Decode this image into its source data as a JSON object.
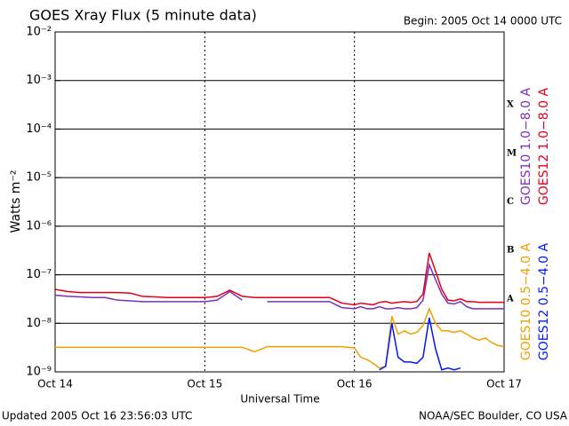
{
  "chart_data": {
    "type": "line",
    "title": "GOES Xray Flux (5 minute data)",
    "subtitle": "Begin:  2005 Oct 14 0000 UTC",
    "x_label": "Universal Time",
    "y_label": "Watts m⁻²",
    "footer_left": "Updated 2005 Oct 16 23:56:03 UTC",
    "footer_right": "NOAA/SEC Boulder, CO USA",
    "ylog": true,
    "grid": true,
    "xlim": [
      0,
      72
    ],
    "xticks": [
      {
        "value": 0,
        "label": "Oct 14"
      },
      {
        "value": 24,
        "label": "Oct 15"
      },
      {
        "value": 48,
        "label": "Oct 16"
      },
      {
        "value": 72,
        "label": "Oct 17"
      }
    ],
    "ylim": [
      1e-09,
      0.01
    ],
    "yticks": [
      {
        "value": 1e-09,
        "label": "10⁻⁹"
      },
      {
        "value": 1e-08,
        "label": "10⁻⁸"
      },
      {
        "value": 1e-07,
        "label": "10⁻⁷"
      },
      {
        "value": 1e-06,
        "label": "10⁻⁶"
      },
      {
        "value": 1e-05,
        "label": "10⁻⁵"
      },
      {
        "value": 0.0001,
        "label": "10⁻⁴"
      },
      {
        "value": 0.001,
        "label": "10⁻³"
      },
      {
        "value": 0.01,
        "label": "10⁻²"
      }
    ],
    "flare_classes": [
      {
        "label": "A",
        "value": 1e-08
      },
      {
        "label": "B",
        "value": 1e-07
      },
      {
        "label": "C",
        "value": 1e-06
      },
      {
        "label": "M",
        "value": 1e-05
      },
      {
        "label": "X",
        "value": 0.0001
      }
    ],
    "x": [
      0,
      2,
      4,
      6,
      8,
      10,
      12,
      14,
      16,
      18,
      20,
      22,
      24,
      26,
      28,
      30,
      32,
      34,
      36,
      38,
      40,
      42,
      44,
      46,
      48,
      49,
      50,
      51,
      52,
      53,
      54,
      55,
      56,
      57,
      58,
      59,
      60,
      61,
      62,
      63,
      64,
      65,
      66,
      67,
      68,
      69,
      70,
      71,
      72
    ],
    "series": [
      {
        "name": "GOES10 1.0−8.0 A",
        "color": "#7b2fbe",
        "values": [
          3.8e-08,
          3.6e-08,
          3.5e-08,
          3.4e-08,
          3.4e-08,
          3e-08,
          2.9e-08,
          2.8e-08,
          2.8e-08,
          2.8e-08,
          2.8e-08,
          2.8e-08,
          2.8e-08,
          3e-08,
          4.5e-08,
          3e-08,
          null,
          2.8e-08,
          2.8e-08,
          2.8e-08,
          2.8e-08,
          2.8e-08,
          2.8e-08,
          2.1e-08,
          2e-08,
          2.2e-08,
          2e-08,
          2e-08,
          2.2e-08,
          2e-08,
          2e-08,
          2.1e-08,
          2e-08,
          2e-08,
          2.1e-08,
          3e-08,
          1.6e-07,
          8e-08,
          4e-08,
          2.6e-08,
          2.5e-08,
          2.8e-08,
          2.2e-08,
          2e-08,
          2e-08,
          2e-08,
          2e-08,
          2e-08,
          2e-08
        ]
      },
      {
        "name": "GOES12 1.0−8.0 A",
        "color": "#e0001a",
        "values": [
          5e-08,
          4.5e-08,
          4.3e-08,
          4.3e-08,
          4.3e-08,
          4.3e-08,
          4.2e-08,
          3.6e-08,
          3.5e-08,
          3.4e-08,
          3.4e-08,
          3.4e-08,
          3.4e-08,
          3.6e-08,
          4.8e-08,
          3.6e-08,
          3.4e-08,
          3.4e-08,
          3.4e-08,
          3.4e-08,
          3.4e-08,
          3.4e-08,
          3.4e-08,
          2.6e-08,
          2.4e-08,
          2.6e-08,
          2.5e-08,
          2.4e-08,
          2.7e-08,
          2.8e-08,
          2.6e-08,
          2.7e-08,
          2.8e-08,
          2.7e-08,
          2.8e-08,
          4e-08,
          2.8e-07,
          1.2e-07,
          5e-08,
          3e-08,
          2.9e-08,
          3.2e-08,
          2.8e-08,
          2.8e-08,
          2.7e-08,
          2.7e-08,
          2.7e-08,
          2.7e-08,
          2.7e-08
        ]
      },
      {
        "name": "GOES10 0.5−4.0 A",
        "color": "#f0a000",
        "values": [
          3.2e-09,
          3.2e-09,
          3.2e-09,
          3.2e-09,
          3.2e-09,
          3.2e-09,
          3.2e-09,
          3.2e-09,
          3.2e-09,
          3.2e-09,
          3.2e-09,
          3.2e-09,
          3.2e-09,
          3.2e-09,
          3.2e-09,
          3.2e-09,
          2.6e-09,
          3.3e-09,
          3.3e-09,
          3.3e-09,
          3.3e-09,
          3.3e-09,
          3.3e-09,
          3.3e-09,
          3.1e-09,
          2e-09,
          1.8e-09,
          1.5e-09,
          1.2e-09,
          1.3e-09,
          1.4e-08,
          6e-09,
          7e-09,
          6e-09,
          6.5e-09,
          9e-09,
          2e-08,
          1e-08,
          7e-09,
          7e-09,
          6.5e-09,
          7e-09,
          6e-09,
          5e-09,
          4.5e-09,
          5e-09,
          4e-09,
          3.5e-09,
          3.3e-09
        ]
      },
      {
        "name": "GOES12 0.5−4.0 A",
        "color": "#0018ff",
        "values": [
          null,
          null,
          null,
          null,
          null,
          null,
          null,
          null,
          null,
          null,
          null,
          null,
          null,
          null,
          null,
          null,
          null,
          null,
          null,
          null,
          null,
          null,
          null,
          null,
          null,
          null,
          null,
          null,
          1.1e-09,
          1.3e-09,
          1e-08,
          2e-09,
          1.6e-09,
          1.6e-09,
          1.5e-09,
          2e-09,
          1.3e-08,
          3e-09,
          1.1e-09,
          1.2e-09,
          1.1e-09,
          1.2e-09,
          null,
          null,
          null,
          null,
          null,
          null,
          null
        ]
      }
    ]
  }
}
